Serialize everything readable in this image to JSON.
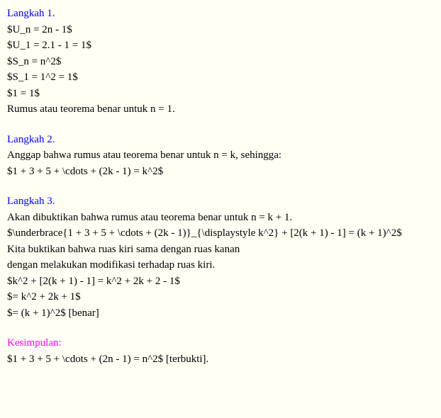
{
  "colors": {
    "background": "#fffff3",
    "text": "#000000",
    "heading": "#0000ff",
    "conclusion": "#ff00ff"
  },
  "typography": {
    "font_family": "Times New Roman",
    "font_size_pt": 12,
    "line_height": 1.5
  },
  "step1": {
    "heading": "Langkah 1.",
    "lines": [
      "$U_n = 2n - 1$",
      "$U_1 = 2.1 - 1 = 1$",
      "$S_n = n^2$",
      "$S_1 = 1^2 = 1$",
      "$1 = 1$",
      "Rumus atau teorema benar untuk n = 1."
    ]
  },
  "step2": {
    "heading": "Langkah 2.",
    "lines": [
      "Anggap bahwa rumus atau teorema benar untuk n = k, sehingga:",
      "$1 + 3 + 5 + \\cdots + (2k - 1) = k^2$"
    ]
  },
  "step3": {
    "heading": "Langkah 3.",
    "lines": [
      "Akan dibuktikan bahwa rumus atau teorema benar untuk n = k + 1.",
      "$\\underbrace{1 + 3 + 5 + \\cdots + (2k - 1)}_{\\displaystyle k^2} + [2(k + 1) - 1] = (k + 1)^2$",
      "Kita buktikan bahwa ruas kiri sama dengan ruas kanan",
      "dengan melakukan modifikasi terhadap ruas kiri.",
      "$k^2 + [2(k + 1) - 1] = k^2 + 2k + 2 - 1$",
      "$= k^2 + 2k + 1$",
      "$= (k + 1)^2$ [benar]"
    ]
  },
  "conclusion": {
    "heading": "Kesimpulan:",
    "lines": [
      "$1 + 3 + 5 + \\cdots + (2n - 1) = n^2$ [terbukti]."
    ]
  }
}
